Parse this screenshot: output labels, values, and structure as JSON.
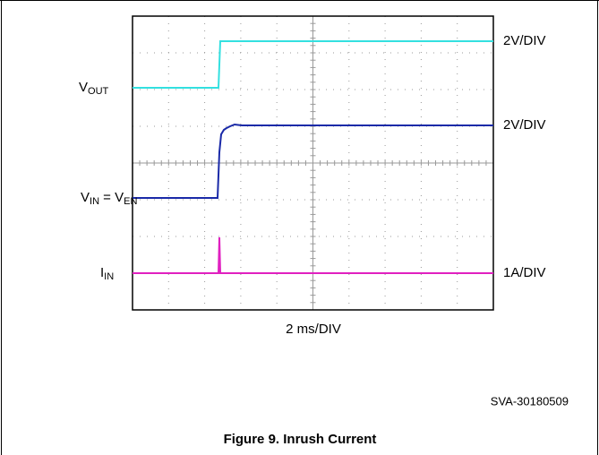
{
  "traces": [
    {
      "label": [
        "V",
        "OUT"
      ],
      "scale": "2V/DIV"
    },
    {
      "label": [
        "V",
        "IN",
        " = V",
        "EN"
      ],
      "scale": "2V/DIV"
    },
    {
      "label": [
        "I",
        "IN"
      ],
      "scale": "1A/DIV"
    }
  ],
  "time_scale": "2 ms/DIV",
  "figure_id": "SVA-30180509",
  "caption": "Figure 9. Inrush Current"
}
